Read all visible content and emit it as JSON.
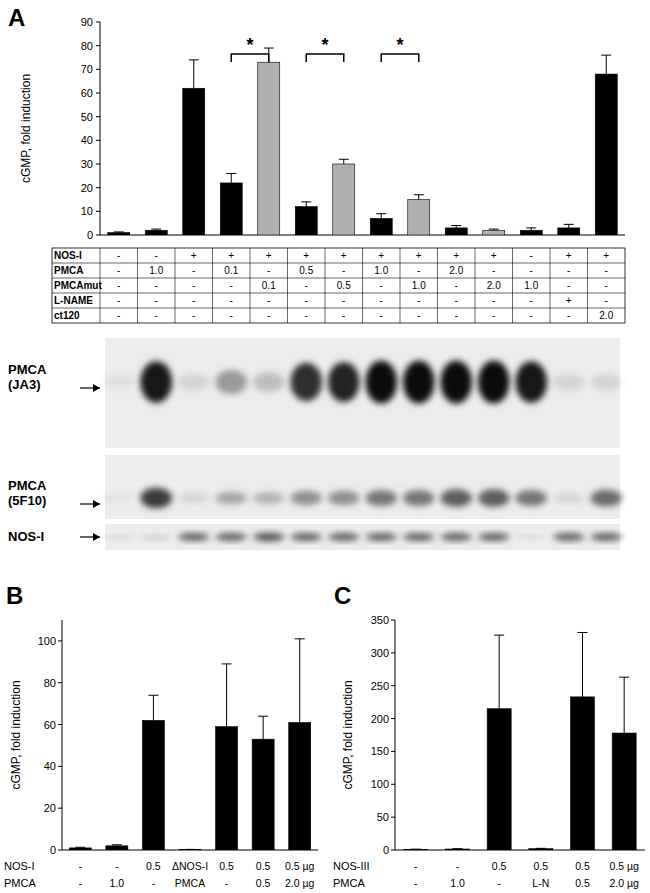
{
  "chart_data": [
    {
      "type": "bar",
      "panel": "A",
      "y_label": "cGMP, fold induction",
      "categories": [
        null,
        null,
        null,
        null,
        null,
        null,
        null,
        null,
        null,
        null,
        null,
        null,
        null,
        null
      ],
      "values": [
        1,
        2,
        62,
        22,
        73,
        12,
        30,
        7,
        15,
        3,
        2,
        2,
        3,
        68
      ],
      "errors": [
        0.3,
        0.5,
        12,
        4,
        6,
        2,
        2,
        2,
        2,
        1,
        0.5,
        1,
        1.5,
        8
      ],
      "colors": [
        "#000000",
        "#000000",
        "#000000",
        "#000000",
        "#b0b0b0",
        "#000000",
        "#b0b0b0",
        "#000000",
        "#b0b0b0",
        "#000000",
        "#b0b0b0",
        "#000000",
        "#000000",
        "#000000"
      ],
      "ylim": [
        0,
        90
      ],
      "yticks": [
        0,
        10,
        20,
        30,
        40,
        50,
        60,
        70,
        80,
        90
      ],
      "grid": false,
      "significance": [
        {
          "bars": [
            3,
            4
          ],
          "label": "*"
        },
        {
          "bars": [
            5,
            6
          ],
          "label": "*"
        },
        {
          "bars": [
            7,
            8
          ],
          "label": "*"
        }
      ],
      "conditions": [
        {
          "label": "NOS-I",
          "cells": [
            "-",
            "-",
            "+",
            "+",
            "+",
            "+",
            "+",
            "+",
            "+",
            "+",
            "+",
            "-",
            "+",
            "+"
          ]
        },
        {
          "label": "PMCA",
          "cells": [
            "-",
            "1.0",
            "-",
            "0.1",
            "-",
            "0.5",
            "-",
            "1.0",
            "-",
            "2.0",
            "-",
            "-",
            "-",
            "-"
          ]
        },
        {
          "label": "PMCAmut",
          "cells": [
            "-",
            "-",
            "-",
            "-",
            "0.1",
            "-",
            "0.5",
            "-",
            "1.0",
            "-",
            "2.0",
            "1.0",
            "-",
            "-"
          ]
        },
        {
          "label": "L-NAME",
          "cells": [
            "-",
            "-",
            "-",
            "-",
            "-",
            "-",
            "-",
            "-",
            "-",
            "-",
            "-",
            "-",
            "+",
            "-"
          ]
        },
        {
          "label": "ct120",
          "cells": [
            "-",
            "-",
            "-",
            "-",
            "-",
            "-",
            "-",
            "-",
            "-",
            "-",
            "-",
            "-",
            "-",
            "2.0"
          ]
        }
      ],
      "blots": [
        {
          "label": "PMCA (JA3)"
        },
        {
          "label": "PMCA (5F10)"
        },
        {
          "label": "NOS-I"
        }
      ]
    },
    {
      "type": "bar",
      "panel": "B",
      "y_label": "cGMP, fold induction",
      "categories": [
        null,
        null,
        null,
        null,
        null,
        null,
        null
      ],
      "values": [
        1,
        2,
        62,
        0.3,
        59,
        53,
        61
      ],
      "errors": [
        0.3,
        0.5,
        12,
        0,
        30,
        11,
        40
      ],
      "color": "#000000",
      "ylim": [
        0,
        110
      ],
      "yticks": [
        0,
        20,
        40,
        60,
        80,
        100
      ],
      "grid": false,
      "conditions": [
        {
          "label": "NOS-I",
          "cells": [
            "-",
            "-",
            "0.5",
            "ΔNOS-I",
            "0.5",
            "0.5",
            "0.5 µg"
          ]
        },
        {
          "label": "PMCA",
          "cells": [
            "-",
            "1.0",
            "-",
            "PMCA",
            "-",
            "0.5",
            "2.0 µg"
          ]
        }
      ]
    },
    {
      "type": "bar",
      "panel": "C",
      "y_label": "cGMP, fold induction",
      "categories": [
        null,
        null,
        null,
        null,
        null,
        null
      ],
      "values": [
        1,
        1.5,
        215,
        2,
        233,
        178
      ],
      "errors": [
        0.3,
        0.5,
        112,
        0.5,
        98,
        85
      ],
      "color": "#000000",
      "ylim": [
        0,
        350
      ],
      "yticks": [
        0,
        50,
        100,
        150,
        200,
        250,
        300,
        350
      ],
      "grid": false,
      "conditions": [
        {
          "label": "NOS-III",
          "cells": [
            "-",
            "-",
            "0.5",
            "0.5",
            "0.5",
            "0.5 µg"
          ]
        },
        {
          "label": "PMCA",
          "cells": [
            "-",
            "1.0",
            "-",
            "L-N",
            "0.5",
            "2.0 µg"
          ]
        }
      ]
    }
  ]
}
